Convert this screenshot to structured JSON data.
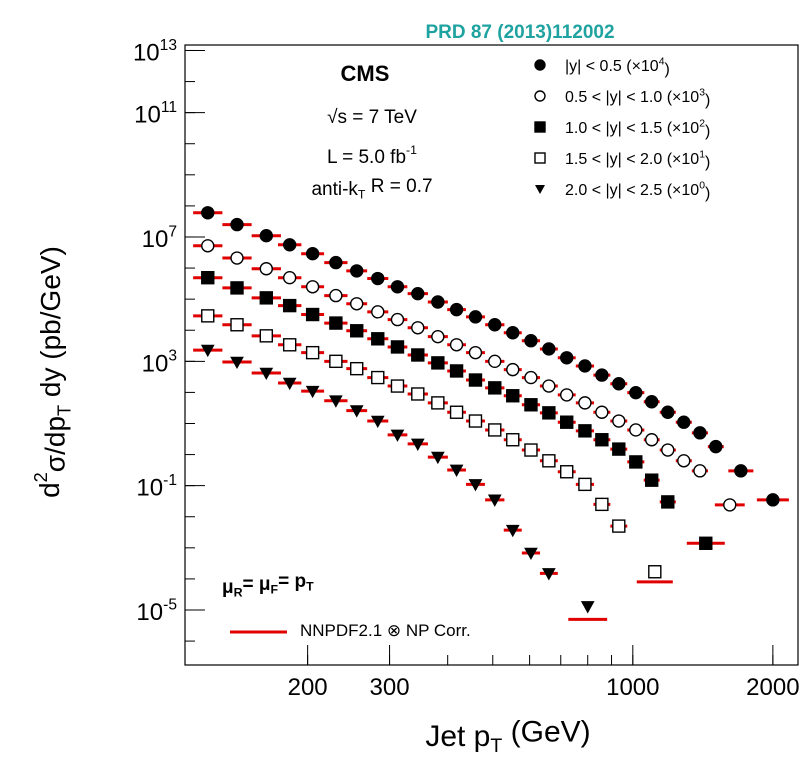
{
  "chart_data": {
    "type": "scatter",
    "title": "PRD 87 (2013)112002",
    "x_label": "Jet p_{T} (GeV)",
    "y_label": "d^{2}σ/dp_{T} dy (pb/GeV)",
    "annotations": [
      "CMS",
      "√s = 7 TeV",
      "L = 5.0 fb^{-1}",
      "anti-k_{T} R = 0.7"
    ],
    "scale_note": "μ_{R}= μ_{F}= p_{T}",
    "theory_label": "NNPDF2.1 ⊗ NP Corr.",
    "theory_color": "#e00000",
    "x_log": true,
    "y_log": true,
    "xlim": [
      109,
      2265
    ],
    "ylim": [
      1.7e-07,
      15000000000000.0
    ],
    "xticks": [
      200,
      300,
      1000,
      2000
    ],
    "yticks": [
      {
        "value": 1e-05,
        "label": "10^{-5}"
      },
      {
        "value": 0.1,
        "label": "10^{-1}"
      },
      {
        "value": 1000,
        "label": "10^{3}"
      },
      {
        "value": 10000000.0,
        "label": "10^{7}"
      },
      {
        "value": 100000000000.0,
        "label": "10^{11}"
      },
      {
        "value": 10000000000000.0,
        "label": "10^{13}"
      }
    ],
    "series": [
      {
        "name": "|y| < 0.5 (×10^{4})",
        "marker": "circle",
        "color": "#000000",
        "x": [
          122,
          141,
          163,
          183,
          205,
          230,
          255,
          283,
          312,
          345,
          381,
          418,
          459,
          505,
          552,
          604,
          660,
          721,
          789,
          858,
          933,
          1015,
          1098,
          1189,
          1287,
          1394,
          1508,
          1707,
          2000
        ],
        "values": [
          60000000.0,
          25000000.0,
          11000000.0,
          5600000.0,
          2900000.0,
          1500000.0,
          810000.0,
          460000.0,
          250000.0,
          150000.0,
          81000.0,
          46000.0,
          27000.0,
          15000.0,
          8300,
          4600,
          2500,
          1300,
          710,
          360,
          190,
          98,
          50,
          23,
          11,
          5,
          1.8,
          0.3,
          0.035
        ],
        "theory": [
          60000000.0,
          25000000.0,
          11000000.0,
          5600000.0,
          2900000.0,
          1500000.0,
          810000.0,
          460000.0,
          250000.0,
          150000.0,
          81000.0,
          46000.0,
          27000.0,
          15000.0,
          8300,
          4600,
          2500,
          1300,
          710,
          360,
          190,
          98,
          50,
          23,
          11,
          5,
          1.8,
          0.3,
          0.035
        ]
      },
      {
        "name": "0.5 < |y| < 1.0 (×10^{3})",
        "marker": "open-circle",
        "color": "#000000",
        "x": [
          122,
          141,
          163,
          183,
          205,
          230,
          255,
          283,
          312,
          345,
          381,
          418,
          459,
          505,
          552,
          604,
          660,
          721,
          789,
          858,
          933,
          1015,
          1098,
          1189,
          1287,
          1394,
          1616
        ],
        "values": [
          5200000.0,
          2100000.0,
          950000.0,
          490000.0,
          250000.0,
          130000.0,
          71000.0,
          39000.0,
          22000.0,
          12000.0,
          6200,
          3400,
          1900,
          1000,
          540,
          300,
          160,
          83,
          46,
          23,
          12,
          6.2,
          3.0,
          1.4,
          0.63,
          0.3,
          0.024
        ],
        "theory": [
          5200000.0,
          2100000.0,
          950000.0,
          490000.0,
          250000.0,
          130000.0,
          71000.0,
          39000.0,
          22000.0,
          12000.0,
          6200,
          3400,
          1900,
          1000,
          540,
          300,
          160,
          83,
          46,
          23,
          12,
          6.2,
          3.0,
          1.4,
          0.63,
          0.3,
          0.024
        ]
      },
      {
        "name": "1.0 < |y| < 1.5 (×10^{2})",
        "marker": "square",
        "color": "#000000",
        "x": [
          122,
          141,
          163,
          183,
          205,
          230,
          255,
          283,
          312,
          345,
          381,
          418,
          459,
          505,
          552,
          604,
          660,
          721,
          789,
          858,
          933,
          1015,
          1098,
          1189,
          1435
        ],
        "values": [
          490000.0,
          230000.0,
          110000.0,
          62000.0,
          32000.0,
          17000.0,
          9600,
          5300,
          2900,
          1600,
          890,
          490,
          250,
          140,
          78,
          40,
          22,
          11,
          5.8,
          3.0,
          1.5,
          0.58,
          0.15,
          0.03,
          0.0014
        ],
        "theory": [
          490000.0,
          230000.0,
          110000.0,
          62000.0,
          32000.0,
          17000.0,
          9600,
          5300,
          2900,
          1600,
          890,
          490,
          250,
          140,
          78,
          40,
          22,
          11,
          5.8,
          3.0,
          1.5,
          0.58,
          0.15,
          0.03,
          0.0014
        ]
      },
      {
        "name": "1.5 < |y| < 2.0 (×10^{1})",
        "marker": "open-square",
        "color": "#000000",
        "x": [
          122,
          141,
          163,
          183,
          205,
          230,
          255,
          283,
          312,
          345,
          381,
          418,
          459,
          505,
          552,
          604,
          660,
          721,
          789,
          858,
          933,
          1115
        ],
        "values": [
          29000.0,
          15000.0,
          6600,
          3400,
          1900,
          1000,
          580,
          300,
          160,
          89,
          46,
          23,
          12,
          6.2,
          3.0,
          1.4,
          0.63,
          0.28,
          0.11,
          0.025,
          0.005,
          0.00017
        ],
        "theory": [
          29000.0,
          15000.0,
          6600,
          3400,
          1900,
          1000,
          580,
          300,
          160,
          89,
          46,
          23,
          12,
          6.2,
          3.0,
          1.4,
          0.63,
          0.28,
          0.11,
          0.025,
          0.005,
          8e-05
        ]
      },
      {
        "name": "2.0 < |y| < 2.5 (×10^{0})",
        "marker": "triangle-down",
        "color": "#000000",
        "x": [
          122,
          141,
          163,
          183,
          205,
          230,
          255,
          283,
          312,
          345,
          381,
          418,
          459,
          505,
          552,
          604,
          660,
          800
        ],
        "values": [
          2300,
          950,
          420,
          200,
          110,
          54,
          26,
          12,
          4.3,
          2.2,
          0.83,
          0.32,
          0.11,
          0.035,
          0.0037,
          0.00068,
          0.00015,
          1.3e-05
        ],
        "theory": [
          2300,
          950,
          420,
          200,
          110,
          54,
          26,
          12,
          4.3,
          2.2,
          0.83,
          0.32,
          0.11,
          0.035,
          0.0037,
          0.00068,
          0.00015,
          5e-06
        ]
      }
    ]
  }
}
